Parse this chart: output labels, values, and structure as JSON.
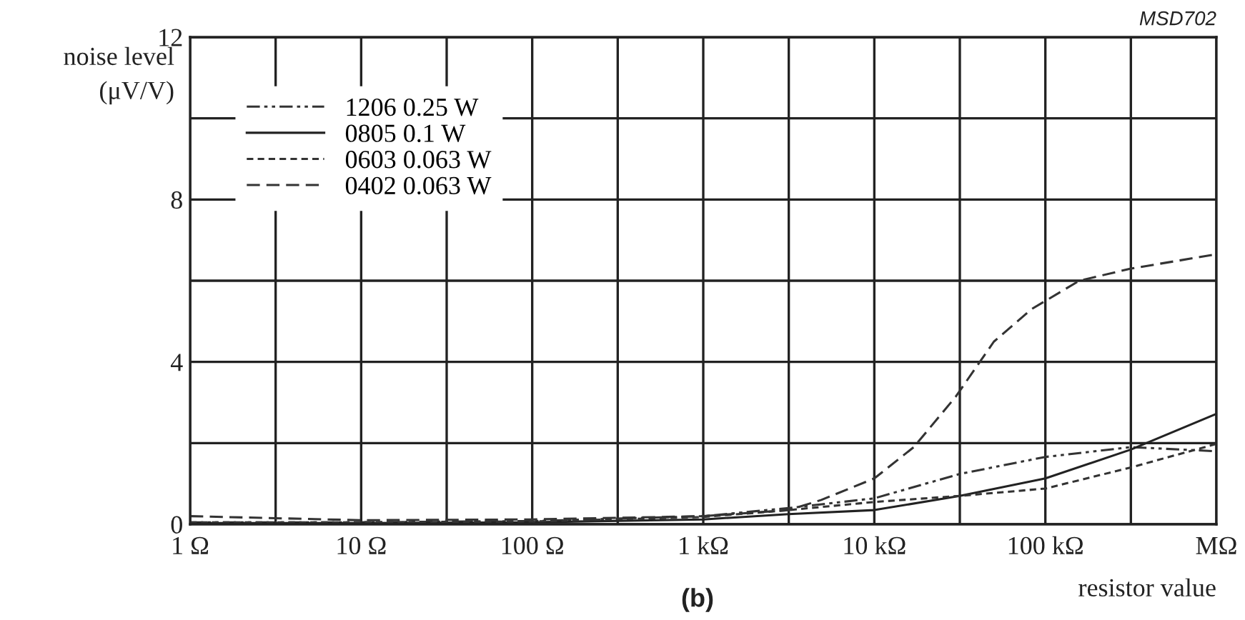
{
  "chart_data": {
    "type": "line",
    "ylabel": "noise level\n(μV/V)",
    "xlabel": "resistor value",
    "annotations": [
      "MSD702",
      "(b)"
    ],
    "log": "x",
    "grid": true,
    "legend": "top left",
    "xlim": [
      1,
      1000000
    ],
    "xticks": [
      {
        "value": 1,
        "label": "1 Ω"
      },
      {
        "value": 3.162,
        "label": null
      },
      {
        "value": 10,
        "label": "10 Ω"
      },
      {
        "value": 31.62,
        "label": null
      },
      {
        "value": 100,
        "label": "100 Ω"
      },
      {
        "value": 316.2,
        "label": null
      },
      {
        "value": 1000,
        "label": "1 kΩ"
      },
      {
        "value": 3162,
        "label": null
      },
      {
        "value": 10000,
        "label": "10 kΩ"
      },
      {
        "value": 31620,
        "label": null
      },
      {
        "value": 100000,
        "label": "100 kΩ"
      },
      {
        "value": 316200,
        "label": null
      },
      {
        "value": 1000000,
        "label": "MΩ"
      }
    ],
    "ylim": [
      0,
      12
    ],
    "yticks": [
      0,
      {
        "value": 2,
        "label": null
      },
      4,
      {
        "value": 6,
        "label": null
      },
      8,
      {
        "value": 10,
        "label": null
      },
      12
    ],
    "series": [
      {
        "name": "1206 0.25 W",
        "color": "#333333",
        "line_style": "dashdot",
        "x": [
          1,
          10,
          100,
          1000,
          3162,
          10000,
          31620,
          100000,
          316200,
          1000000
        ],
        "values": [
          0.05,
          0.05,
          0.08,
          0.2,
          0.4,
          0.64,
          1.24,
          1.66,
          1.9,
          1.8
        ]
      },
      {
        "name": "0805 0.1 W",
        "color": "#222222",
        "line_style": "solid",
        "x": [
          1,
          10,
          100,
          1000,
          3162,
          10000,
          31620,
          100000,
          316200,
          1000000
        ],
        "values": [
          0.03,
          0.03,
          0.05,
          0.12,
          0.25,
          0.35,
          0.7,
          1.13,
          1.84,
          2.72
        ]
      },
      {
        "name": "0603 0.063 W",
        "color": "#333333",
        "line_style": "dotted",
        "x": [
          1,
          10,
          100,
          1000,
          3162,
          10000,
          31620,
          100000,
          316200,
          1000000
        ],
        "values": [
          0.05,
          0.05,
          0.07,
          0.18,
          0.35,
          0.55,
          0.7,
          0.88,
          1.4,
          1.98
        ]
      },
      {
        "name": "0402 0.063 W",
        "color": "#333333",
        "line_style": "dashed",
        "x": [
          1,
          10,
          100,
          1000,
          3162,
          4900,
          10000,
          17000,
          30000,
          50000,
          83000,
          158000,
          316200,
          1000000
        ],
        "values": [
          0.2,
          0.1,
          0.12,
          0.2,
          0.35,
          0.6,
          1.13,
          1.9,
          3.15,
          4.5,
          5.3,
          6.0,
          6.3,
          6.65
        ]
      }
    ]
  }
}
